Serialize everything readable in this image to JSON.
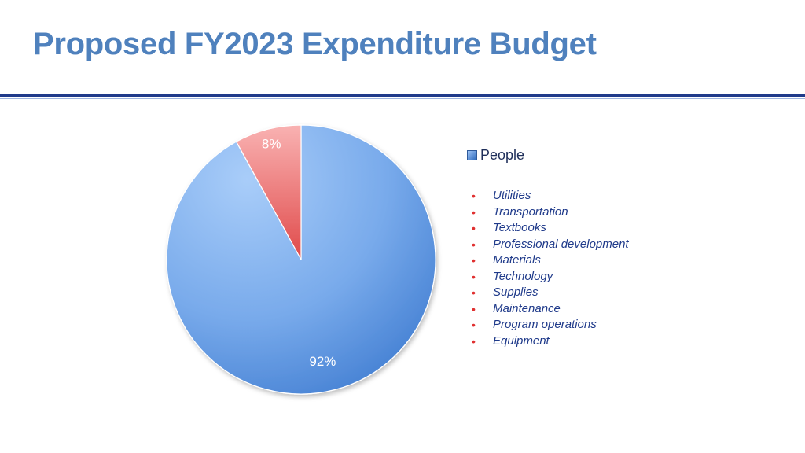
{
  "title": "Proposed FY2023 Expenditure Budget",
  "chart_data": {
    "type": "pie",
    "slices": [
      {
        "name": "People",
        "value": 92,
        "label": "92%",
        "color": "#5b95e0"
      },
      {
        "name": "",
        "value": 8,
        "label": "8%",
        "color": "#f07f7f"
      }
    ],
    "legend": {
      "placement": "right",
      "entries": [
        "People"
      ]
    }
  },
  "other_items": [
    "Utilities",
    "Transportation",
    "Textbooks",
    "Professional development",
    "Materials",
    "Technology",
    "Supplies",
    "Maintenance",
    "Program operations",
    "Equipment"
  ],
  "colors": {
    "title": "#4f81bd",
    "bullet": "#e03030",
    "item_text": "#1f3a8a"
  }
}
